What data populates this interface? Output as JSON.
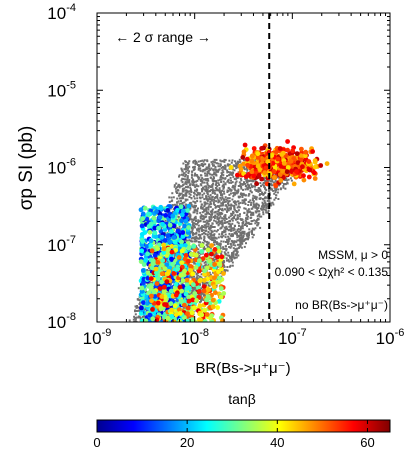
{
  "chart_data": {
    "type": "scatter",
    "title": "",
    "xlabel": "BR(Bs->μ⁺μ⁻)",
    "ylabel": "σp SI (pb)",
    "x_scale": "log",
    "y_scale": "log",
    "xlim": [
      1e-09,
      1e-06
    ],
    "ylim": [
      1e-08,
      0.0001
    ],
    "x_ticks": [
      "10⁻⁹",
      "10⁻⁸",
      "10⁻⁷",
      "10⁻⁶"
    ],
    "y_ticks": [
      "10⁻⁸",
      "10⁻⁷",
      "10⁻⁶",
      "10⁻⁵",
      "10⁻⁴"
    ],
    "x_tick_base": [
      "10",
      "10",
      "10",
      "10"
    ],
    "x_tick_exp": [
      "-9",
      "-8",
      "-7",
      "-6"
    ],
    "y_tick_base": [
      "10",
      "10",
      "10",
      "10",
      "10"
    ],
    "y_tick_exp": [
      "-8",
      "-7",
      "-6",
      "-5",
      "-4"
    ],
    "vline_x": 5.8e-08,
    "annotations": {
      "range": "←  2 σ range  →",
      "model": "MSSM, μ > 0",
      "relic": "0.090 < Ωχh² < 0.135",
      "constraint": "no BR(Bs->μ⁺μ⁻)"
    },
    "grey_point_color": "#707070",
    "point_clusters": [
      {
        "name": "gray-main",
        "colormapped": false,
        "count": 3600,
        "x_log_range": [
          -8.7,
          -6.9
        ],
        "y_log_range": [
          -8.0,
          -5.9
        ]
      },
      {
        "name": "low-tanb",
        "colormapped": true,
        "count": 700,
        "x_log_range": [
          -8.55,
          -8.05
        ],
        "y_log_range": [
          -8.0,
          -6.5
        ],
        "color_range": [
          5,
          35
        ]
      },
      {
        "name": "mid-tanb",
        "colormapped": true,
        "count": 380,
        "x_log_range": [
          -8.45,
          -7.7
        ],
        "y_log_range": [
          -8.0,
          -7.0
        ],
        "color_range": [
          25,
          60
        ]
      },
      {
        "name": "high-tanb",
        "colormapped": true,
        "count": 420,
        "x_log_range": [
          -7.55,
          -6.1
        ],
        "y_log_range": [
          -6.4,
          -5.6
        ],
        "color_range": [
          42,
          62
        ]
      }
    ],
    "colorbar": {
      "label": "tanβ",
      "min": 0,
      "max": 65,
      "ticks": [
        0,
        20,
        40,
        60
      ],
      "tick_labels": [
        "0",
        "20",
        "40",
        "60"
      ],
      "colormap": "jet"
    }
  }
}
